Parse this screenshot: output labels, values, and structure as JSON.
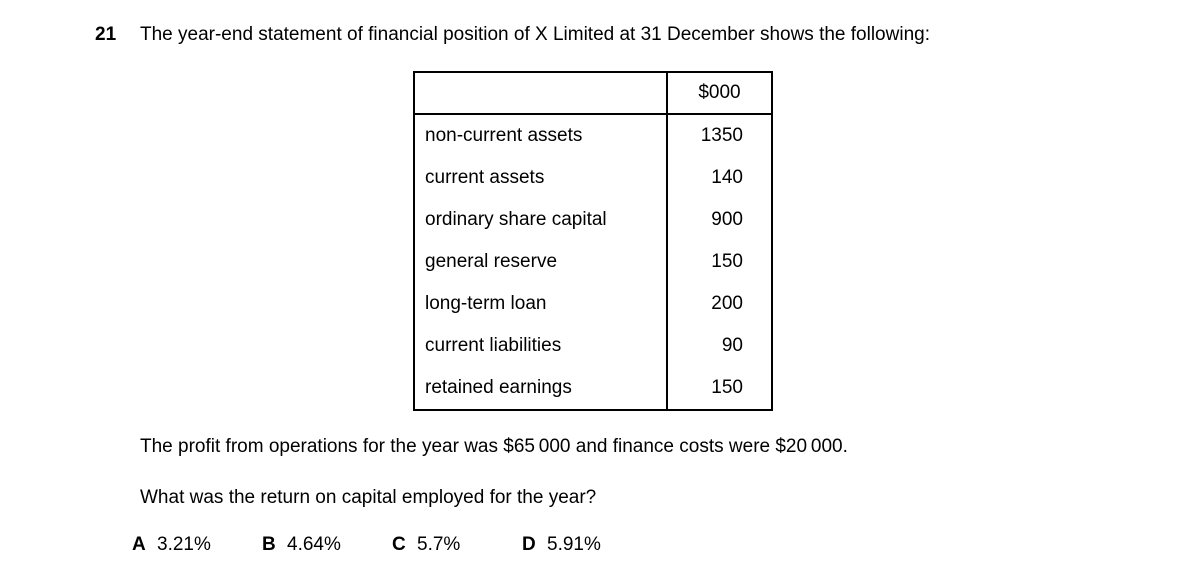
{
  "question": {
    "number": "21",
    "stem": "The year-end statement of financial position of X Limited at 31 December shows the following:",
    "paragraph1": "The profit from operations for the year was $65 000 and finance costs were $20 000.",
    "paragraph2": "What was the return on capital employed for the year?"
  },
  "table": {
    "value_header": "$000",
    "rows": [
      {
        "label": "non-current assets",
        "value": "1350"
      },
      {
        "label": "current assets",
        "value": "140"
      },
      {
        "label": "ordinary share capital",
        "value": "900"
      },
      {
        "label": "general reserve",
        "value": "150"
      },
      {
        "label": "long-term loan",
        "value": "200"
      },
      {
        "label": "current liabilities",
        "value": "90"
      },
      {
        "label": "retained earnings",
        "value": "150"
      }
    ]
  },
  "options": [
    {
      "letter": "A",
      "value": "3.21%"
    },
    {
      "letter": "B",
      "value": "4.64%"
    },
    {
      "letter": "C",
      "value": "5.7%"
    },
    {
      "letter": "D",
      "value": "5.91%"
    }
  ],
  "colors": {
    "text": "#000000",
    "background": "#ffffff",
    "border": "#000000"
  }
}
